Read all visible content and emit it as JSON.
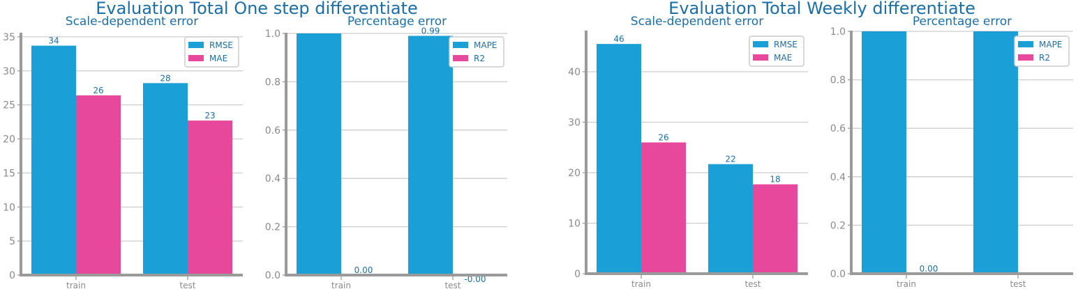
{
  "colors": {
    "series1": "#1a9fd6",
    "series2": "#e8489b",
    "text": "#1a6fa8",
    "axis": "#9a9a9a",
    "grid": "#cccccc"
  },
  "figures": [
    {
      "suptitle": "Evaluation Total One step differentiate"
    },
    {
      "suptitle": "Evaluation Total Weekly differentiate"
    }
  ],
  "chart_data": [
    {
      "type": "bar",
      "title": "Scale-dependent error",
      "categories": [
        "train",
        "test"
      ],
      "series": [
        {
          "name": "RMSE",
          "values": [
            33.7,
            28.2
          ]
        },
        {
          "name": "MAE",
          "values": [
            26.4,
            22.7
          ]
        }
      ],
      "data_labels": [
        [
          "34",
          "28"
        ],
        [
          "26",
          "23"
        ]
      ],
      "ylim": [
        0,
        35.5
      ],
      "yticks": [
        0,
        5,
        10,
        15,
        20,
        25,
        30,
        35
      ],
      "ytick_labels": [
        "0",
        "5",
        "10",
        "15",
        "20",
        "25",
        "30",
        "35"
      ],
      "grid": true,
      "legend": "top-right"
    },
    {
      "type": "bar",
      "title": "Percentage error",
      "categories": [
        "train",
        "test"
      ],
      "series": [
        {
          "name": "MAPE",
          "values": [
            1.0,
            0.99
          ]
        },
        {
          "name": "R2",
          "values": [
            0.0,
            -0.002
          ]
        }
      ],
      "data_labels": [
        [
          "",
          "0.99"
        ],
        [
          "0.00",
          "-0.00"
        ]
      ],
      "ylim": [
        0,
        1.0
      ],
      "yticks": [
        0,
        0.2,
        0.4,
        0.6,
        0.8,
        1.0
      ],
      "ytick_labels": [
        "0.0",
        "0.2",
        "0.4",
        "0.6",
        "0.8",
        "1.0"
      ],
      "grid": true,
      "legend": "top-right"
    },
    {
      "type": "bar",
      "title": "Scale-dependent error",
      "categories": [
        "train",
        "test"
      ],
      "series": [
        {
          "name": "RMSE",
          "values": [
            45.5,
            21.7
          ]
        },
        {
          "name": "MAE",
          "values": [
            26.0,
            17.7
          ]
        }
      ],
      "data_labels": [
        [
          "46",
          "22"
        ],
        [
          "26",
          "18"
        ]
      ],
      "ylim": [
        0,
        48
      ],
      "yticks": [
        0,
        10,
        20,
        30,
        40
      ],
      "ytick_labels": [
        "0",
        "10",
        "20",
        "30",
        "40"
      ],
      "grid": true,
      "legend": "top-right"
    },
    {
      "type": "bar",
      "title": "Percentage error",
      "categories": [
        "train",
        "test"
      ],
      "series": [
        {
          "name": "MAPE",
          "values": [
            1.0,
            1.0
          ]
        },
        {
          "name": "R2",
          "values": [
            0.0,
            0.0
          ]
        }
      ],
      "data_labels": [
        [
          "",
          ""
        ],
        [
          "0.00",
          ""
        ]
      ],
      "ylim": [
        0,
        1.0
      ],
      "yticks": [
        0,
        0.2,
        0.4,
        0.6,
        0.8,
        1.0
      ],
      "ytick_labels": [
        "0.0",
        "0.2",
        "0.4",
        "0.6",
        "0.8",
        "1.0"
      ],
      "grid": true,
      "legend": "top-right"
    }
  ]
}
